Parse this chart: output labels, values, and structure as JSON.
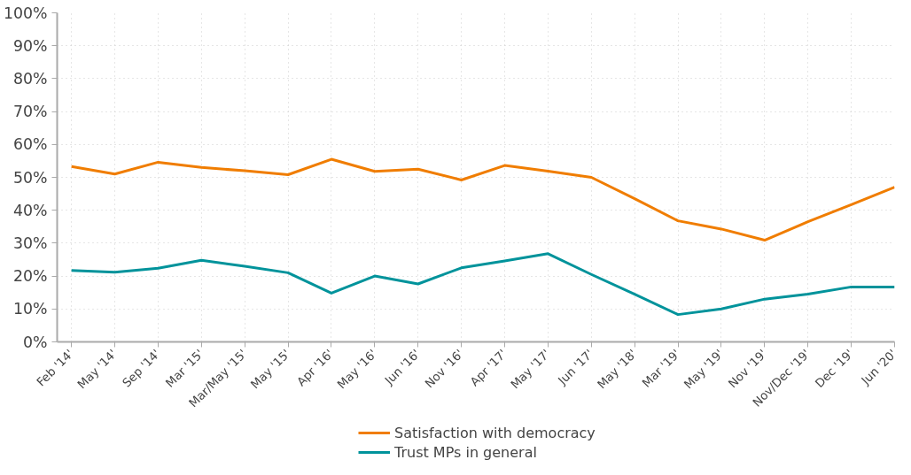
{
  "chart_data": {
    "type": "line",
    "categories": [
      "Feb '14'",
      "May '14'",
      "Sep '14'",
      "Mar '15'",
      "Mar/May '15'",
      "May '15'",
      "Apr '16'",
      "May '16'",
      "Jun '16'",
      "Nov '16'",
      "Apr '17'",
      "May '17'",
      "Jun '17'",
      "May '18'",
      "Mar '19'",
      "May '19'",
      "Nov '19'",
      "Nov/Dec '19'",
      "Dec '19'",
      "Jun '20'"
    ],
    "series": [
      {
        "name": "Satisfaction with democracy",
        "color": "#f07d00",
        "values": [
          53.3,
          51,
          54.6,
          53,
          52,
          50.8,
          55.5,
          51.8,
          52.5,
          49.2,
          53.6,
          51.9,
          50,
          43.5,
          36.8,
          34.3,
          30.9,
          36.5,
          41.7,
          47
        ]
      },
      {
        "name": "Trust MPs in general",
        "color": "#00939b",
        "values": [
          21.7,
          21.2,
          22.4,
          24.8,
          23,
          21,
          14.8,
          20,
          17.6,
          22.5,
          24.6,
          26.8,
          20.5,
          14.5,
          8.3,
          10,
          13,
          14.5,
          16.7,
          16.7
        ]
      }
    ],
    "ylim": [
      0,
      100
    ],
    "yticks": [
      {
        "value": 0,
        "label": "0%"
      },
      {
        "value": 10,
        "label": "10%"
      },
      {
        "value": 20,
        "label": "20%"
      },
      {
        "value": 30,
        "label": "30%"
      },
      {
        "value": 40,
        "label": "40%"
      },
      {
        "value": 50,
        "label": "50%"
      },
      {
        "value": 60,
        "label": "60%"
      },
      {
        "value": 70,
        "label": "70%"
      },
      {
        "value": 80,
        "label": "80%"
      },
      {
        "value": 90,
        "label": "90%"
      },
      {
        "value": 100,
        "label": "100%"
      }
    ],
    "grid": true,
    "legend": "bottom",
    "marker": "none",
    "line_style": "solid"
  }
}
